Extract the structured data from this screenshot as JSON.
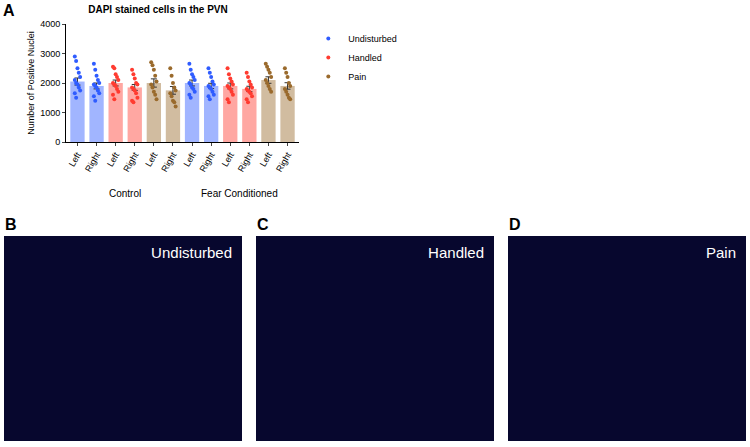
{
  "chart_data": {
    "type": "bar",
    "title": "DAPI stained cells in the PVN",
    "y_label": "Number of Positive Nuclei",
    "categories": [
      "Left",
      "Right",
      "Left",
      "Right",
      "Left",
      "Right",
      "Left",
      "Right",
      "Left",
      "Right",
      "Left",
      "Right"
    ],
    "groups": [
      "Control",
      "Control",
      "Control",
      "Control",
      "Control",
      "Control",
      "Fear Conditioned",
      "Fear Conditioned",
      "Fear Conditioned",
      "Fear Conditioned",
      "Fear Conditioned",
      "Fear Conditioned"
    ],
    "series": [
      {
        "name": "Undisturbed",
        "color": "#2f5cff",
        "values": [
          2050,
          1900,
          null,
          null,
          null,
          null,
          2000,
          1900,
          null,
          null,
          null,
          null
        ],
        "errors": [
          120,
          100,
          null,
          null,
          null,
          null,
          100,
          90,
          null,
          null,
          null,
          null
        ],
        "points": [
          [
            2900,
            2750,
            2500,
            2350,
            2200,
            2100,
            2000,
            1950,
            1850,
            1750,
            1650,
            1500
          ],
          [
            2650,
            2450,
            2250,
            2100,
            2000,
            1950,
            1900,
            1850,
            1750,
            1650,
            1550,
            1400
          ],
          null,
          null,
          null,
          null,
          [
            2650,
            2450,
            2300,
            2200,
            2100,
            2000,
            1950,
            1850,
            1800,
            1700,
            1600,
            1500
          ],
          [
            2500,
            2350,
            2200,
            2050,
            1950,
            1900,
            1850,
            1800,
            1700,
            1600,
            1550,
            1450
          ],
          null,
          null,
          null,
          null
        ]
      },
      {
        "name": "Handled",
        "color": "#ff3b30",
        "values": [
          null,
          null,
          2000,
          1850,
          null,
          null,
          null,
          null,
          1900,
          1800,
          null,
          null
        ],
        "errors": [
          null,
          null,
          100,
          100,
          null,
          null,
          null,
          null,
          100,
          90,
          null,
          null
        ],
        "points": [
          null,
          null,
          [
            2550,
            2500,
            2300,
            2200,
            2100,
            2000,
            1950,
            1900,
            1800,
            1700,
            1600,
            1450
          ],
          [
            2450,
            2300,
            2150,
            2000,
            1950,
            1850,
            1800,
            1750,
            1650,
            1500,
            1400,
            1350
          ],
          null,
          null,
          null,
          null,
          [
            2500,
            2300,
            2150,
            2050,
            1950,
            1900,
            1850,
            1800,
            1700,
            1600,
            1450,
            1350
          ],
          [
            2350,
            2200,
            2050,
            1950,
            1850,
            1800,
            1750,
            1700,
            1650,
            1550,
            1450,
            1350
          ],
          null,
          null
        ]
      },
      {
        "name": "Pain",
        "color": "#9a6a2c",
        "values": [
          null,
          null,
          null,
          null,
          2000,
          1750,
          null,
          null,
          null,
          null,
          2100,
          1900
        ],
        "errors": [
          null,
          null,
          null,
          null,
          140,
          130,
          null,
          null,
          null,
          null,
          110,
          110
        ],
        "points": [
          null,
          null,
          null,
          null,
          [
            2700,
            2600,
            2450,
            2250,
            2050,
            1950,
            1850,
            1700,
            1600,
            1450
          ],
          [
            2500,
            2250,
            2000,
            1850,
            1750,
            1650,
            1550,
            1400,
            1350,
            1200
          ],
          null,
          null,
          null,
          null,
          [
            2650,
            2550,
            2450,
            2350,
            2200,
            2100,
            2000,
            1900,
            1800,
            1700
          ],
          [
            2500,
            2350,
            2200,
            2000,
            1900,
            1800,
            1700,
            1600,
            1500,
            1450
          ]
        ]
      }
    ],
    "ylim": [
      0,
      4000
    ],
    "yticks": [
      0,
      1000,
      2000,
      3000,
      4000
    ],
    "grid": false,
    "legend": "right"
  },
  "panels": [
    {
      "letter": "A"
    },
    {
      "letter": "B",
      "label": "Undisturbed"
    },
    {
      "letter": "C",
      "label": "Handled"
    },
    {
      "letter": "D",
      "label": "Pain"
    }
  ]
}
